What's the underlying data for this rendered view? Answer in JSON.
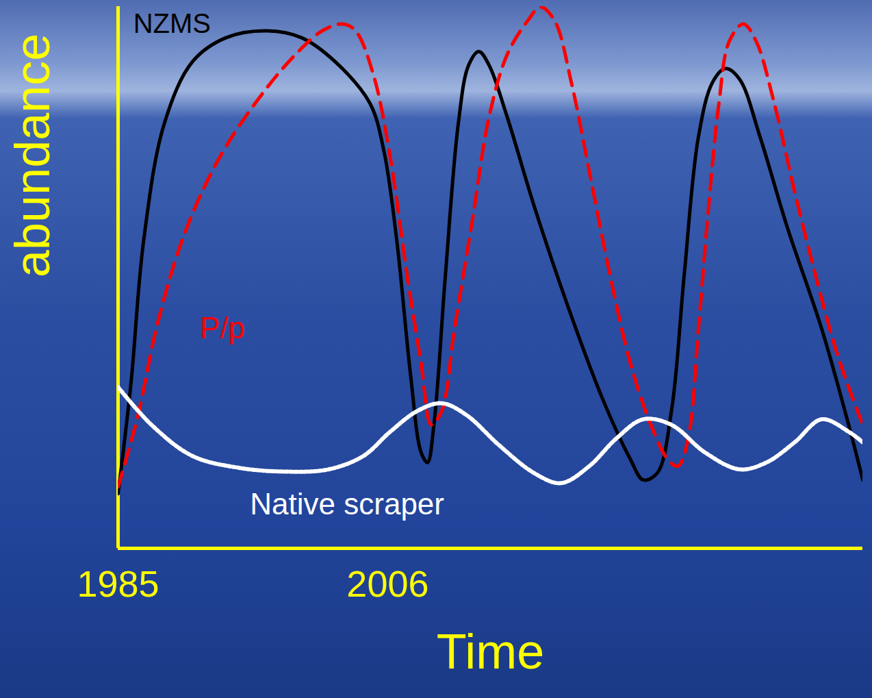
{
  "chart_data": {
    "type": "line",
    "xlabel": "Time",
    "ylabel": "abundance",
    "xlim": [
      1985,
      2043
    ],
    "ylim": [
      0,
      118
    ],
    "xticks": [
      1985,
      2006
    ],
    "yticks": [],
    "tick_labels": "x",
    "grid": false,
    "series": [
      {
        "name": "NZMS",
        "color": "#000000",
        "line_style": "solid",
        "x": [
          1985.0,
          1986.0,
          1987.0,
          1988.6,
          1990.8,
          1993.4,
          1996.6,
          1999.3,
          2001.9,
          2004.6,
          2005.7,
          2006.7,
          2007.8,
          2008.6,
          2009.1,
          2009.6,
          2010.5,
          2011.5,
          2012.3,
          2013.1,
          2013.9,
          2015.3,
          2017.4,
          2020.1,
          2022.7,
          2024.9,
          2025.9,
          2027.0,
          2028.1,
          2029.1,
          2030.2,
          2031.3,
          2032.3,
          2033.4,
          2035.0,
          2037.1,
          2039.8,
          2041.9,
          2043.0
        ],
        "values": [
          11.9,
          35.8,
          67.2,
          92.5,
          106.0,
          111.2,
          112.7,
          111.2,
          106.0,
          97.0,
          86.6,
          67.2,
          37.3,
          20.9,
          18.7,
          26.9,
          59.7,
          92.5,
          105.2,
          108.2,
          105.2,
          94.0,
          74.6,
          52.2,
          32.8,
          19.4,
          14.9,
          16.4,
          29.9,
          59.7,
          89.6,
          101.5,
          104.5,
          102.2,
          89.6,
          70.1,
          47.8,
          26.9,
          14.9
        ]
      },
      {
        "name": "P/p",
        "color": "#ff0000",
        "line_style": "dashed",
        "x": [
          1985.0,
          1986.5,
          1988.1,
          1990.2,
          1992.9,
          1996.1,
          1998.8,
          2000.9,
          2002.5,
          2003.5,
          2004.9,
          2006.2,
          2007.5,
          2008.6,
          2009.4,
          2010.2,
          2011.2,
          2012.6,
          2013.9,
          2015.3,
          2016.9,
          2017.9,
          2019.0,
          2020.3,
          2021.7,
          2023.3,
          2024.9,
          2026.5,
          2027.8,
          2028.6,
          2029.4,
          2030.2,
          2031.0,
          2031.8,
          2032.6,
          2033.7,
          2034.7,
          2036.1,
          2037.7,
          2039.3,
          2040.9,
          2042.2,
          2043.0
        ],
        "values": [
          13.4,
          28.4,
          49.3,
          68.7,
          85.1,
          98.5,
          107.5,
          112.7,
          114.2,
          112.7,
          103.0,
          85.1,
          59.7,
          40.3,
          26.9,
          29.9,
          47.8,
          71.6,
          94.0,
          107.5,
          114.9,
          117.9,
          114.9,
          101.5,
          82.1,
          59.7,
          40.3,
          26.9,
          19.4,
          17.9,
          23.9,
          47.8,
          74.6,
          97.0,
          110.4,
          114.2,
          110.4,
          97.0,
          77.6,
          59.7,
          43.3,
          32.8,
          26.9
        ]
      },
      {
        "name": "Native scraper",
        "color": "#ffffff",
        "line_style": "dotted",
        "x": [
          1985.0,
          1987.6,
          1990.8,
          1994.5,
          1998.2,
          2001.4,
          2004.1,
          2006.2,
          2008.3,
          2010.2,
          2012.1,
          2014.7,
          2017.4,
          2019.5,
          2021.7,
          2023.8,
          2025.9,
          2028.1,
          2030.7,
          2033.4,
          2035.5,
          2037.7,
          2039.8,
          2041.9,
          2043.0
        ],
        "values": [
          35.1,
          26.9,
          20.1,
          17.5,
          16.7,
          17.2,
          20.1,
          25.4,
          29.9,
          31.6,
          29.1,
          22.4,
          16.4,
          14.2,
          17.9,
          23.9,
          28.1,
          26.9,
          20.9,
          17.2,
          18.7,
          23.1,
          28.1,
          25.4,
          23.1
        ]
      }
    ]
  }
}
